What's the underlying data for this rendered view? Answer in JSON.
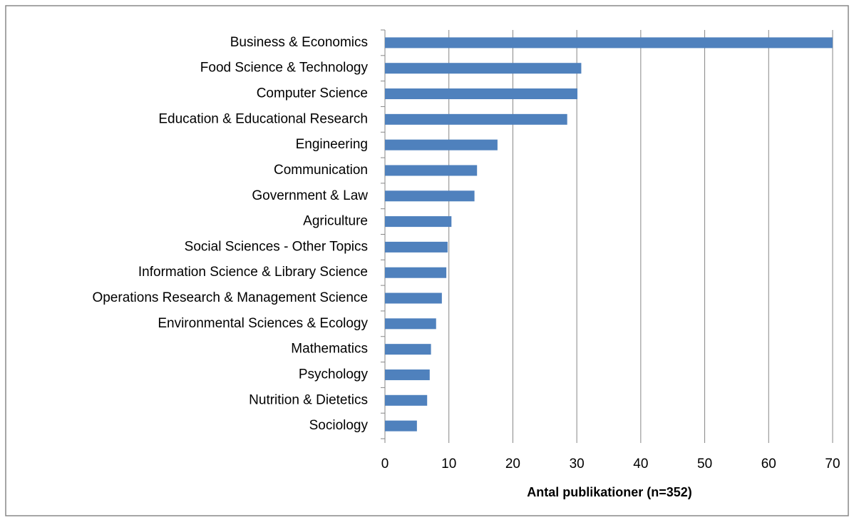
{
  "chart_data": {
    "type": "bar",
    "orientation": "horizontal",
    "categories": [
      "Business & Economics",
      "Food Science & Technology",
      "Computer Science",
      "Education & Educational Research",
      "Engineering",
      "Communication",
      "Government & Law",
      "Agriculture",
      "Social Sciences - Other Topics",
      "Information Science & Library Science",
      "Operations Research & Management Science",
      "Environmental Sciences & Ecology",
      "Mathematics",
      "Psychology",
      "Nutrition & Dietetics",
      "Sociology"
    ],
    "values": [
      70,
      30.7,
      30.1,
      28.5,
      17.6,
      14.4,
      14,
      10.4,
      9.8,
      9.6,
      8.9,
      8,
      7.2,
      7,
      6.6,
      5
    ],
    "color": "#4f81bd",
    "xlim": [
      0,
      70
    ],
    "xticks": [
      0,
      10,
      20,
      30,
      40,
      50,
      60,
      70
    ],
    "x_label": "Antal publikationer (n=352)",
    "grid": true
  }
}
